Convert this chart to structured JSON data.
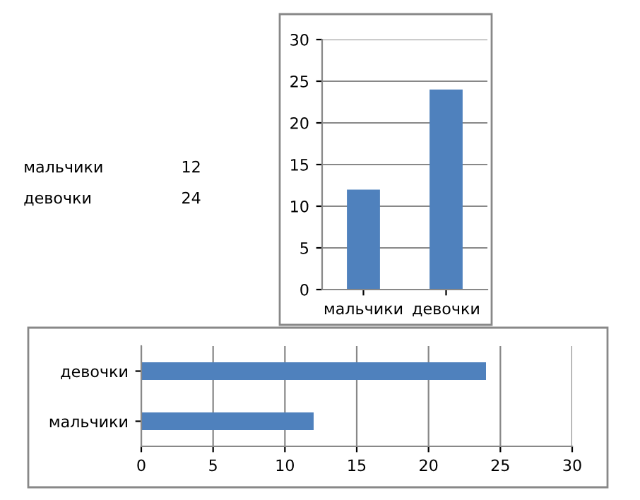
{
  "chart_data": [
    {
      "type": "other",
      "annotations": [
        "мальчики",
        "12",
        "девочки",
        "24"
      ]
    },
    {
      "type": "bar",
      "categories": [
        "мальчики",
        "девочки"
      ],
      "values": [
        12,
        24
      ],
      "color": "#4f81bd",
      "ylim": [
        0,
        30
      ],
      "yticks": [
        0,
        5,
        10,
        15,
        20,
        25,
        30
      ],
      "grid": "y",
      "legend": false
    },
    {
      "type": "bar",
      "orientation": "horizontal",
      "categories": [
        "девочки",
        "мальчики"
      ],
      "values": [
        24,
        12
      ],
      "color": "#4f81bd",
      "xlim": [
        0,
        30
      ],
      "xticks": [
        0,
        5,
        10,
        15,
        20,
        25,
        30
      ],
      "grid": "x",
      "legend": false
    }
  ]
}
